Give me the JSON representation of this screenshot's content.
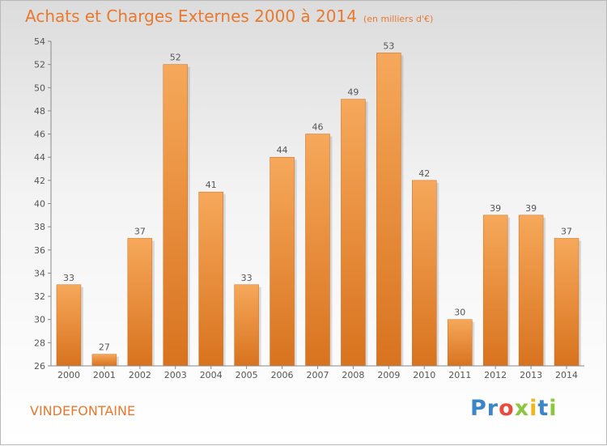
{
  "title": "Achats et Charges Externes 2000 à 2014",
  "subtitle": "(en milliers d'€)",
  "commune": "VINDEFONTAINE",
  "logo": {
    "letters": [
      "P",
      "r",
      "o",
      "x",
      "i",
      "t",
      "i"
    ],
    "colors": [
      "#3a86c8",
      "#3a86c8",
      "#e94b3c",
      "#8cc63f",
      "#f2b51c",
      "#3a86c8",
      "#8cc63f"
    ]
  },
  "colors": {
    "title": "#e8792f",
    "bar_light": "#f6a85a",
    "bar_dark": "#d8731f"
  },
  "chart_data": {
    "type": "bar",
    "title": "Achats et Charges Externes 2000 à 2014",
    "categories": [
      "2000",
      "2001",
      "2002",
      "2003",
      "2004",
      "2005",
      "2006",
      "2007",
      "2008",
      "2009",
      "2010",
      "2011",
      "2012",
      "2013",
      "2014"
    ],
    "values": [
      33,
      27,
      37,
      52,
      41,
      33,
      44,
      46,
      49,
      53,
      42,
      30,
      39,
      39,
      37
    ],
    "ylim": [
      26,
      54
    ],
    "yticks": [
      26,
      28,
      30,
      32,
      34,
      36,
      38,
      40,
      42,
      44,
      46,
      48,
      50,
      52,
      54
    ],
    "grid": false,
    "xlabel": "",
    "ylabel": ""
  }
}
